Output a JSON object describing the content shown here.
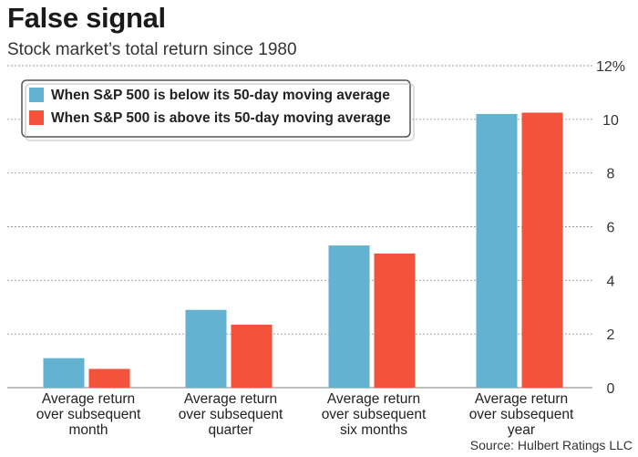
{
  "header": {
    "title": "False signal",
    "subtitle": "Stock market’s total return since 1980"
  },
  "source": "Source: Hulbert Ratings LLC",
  "colors": {
    "below": "#63b2d1",
    "above": "#f2533a",
    "grid": "#9a9a9a"
  },
  "chart_data": {
    "type": "bar",
    "categories": [
      [
        "Average return",
        "over subsequent",
        "month"
      ],
      [
        "Average return",
        "over subsequent",
        "quarter"
      ],
      [
        "Average return",
        "over subsequent",
        "six months"
      ],
      [
        "Average return",
        "over subsequent",
        "year"
      ]
    ],
    "series": [
      {
        "name": "When S&P 500 is below its 50-day moving average",
        "values": [
          1.1,
          2.9,
          5.3,
          10.2
        ]
      },
      {
        "name": "When S&P 500 is above its 50-day moving average",
        "values": [
          0.7,
          2.35,
          5.0,
          10.25
        ]
      }
    ],
    "ylim": [
      0,
      12
    ],
    "yticks": [
      "0",
      "2",
      "4",
      "6",
      "8",
      "10",
      "12%"
    ],
    "grid": true,
    "legend": "top-left"
  }
}
